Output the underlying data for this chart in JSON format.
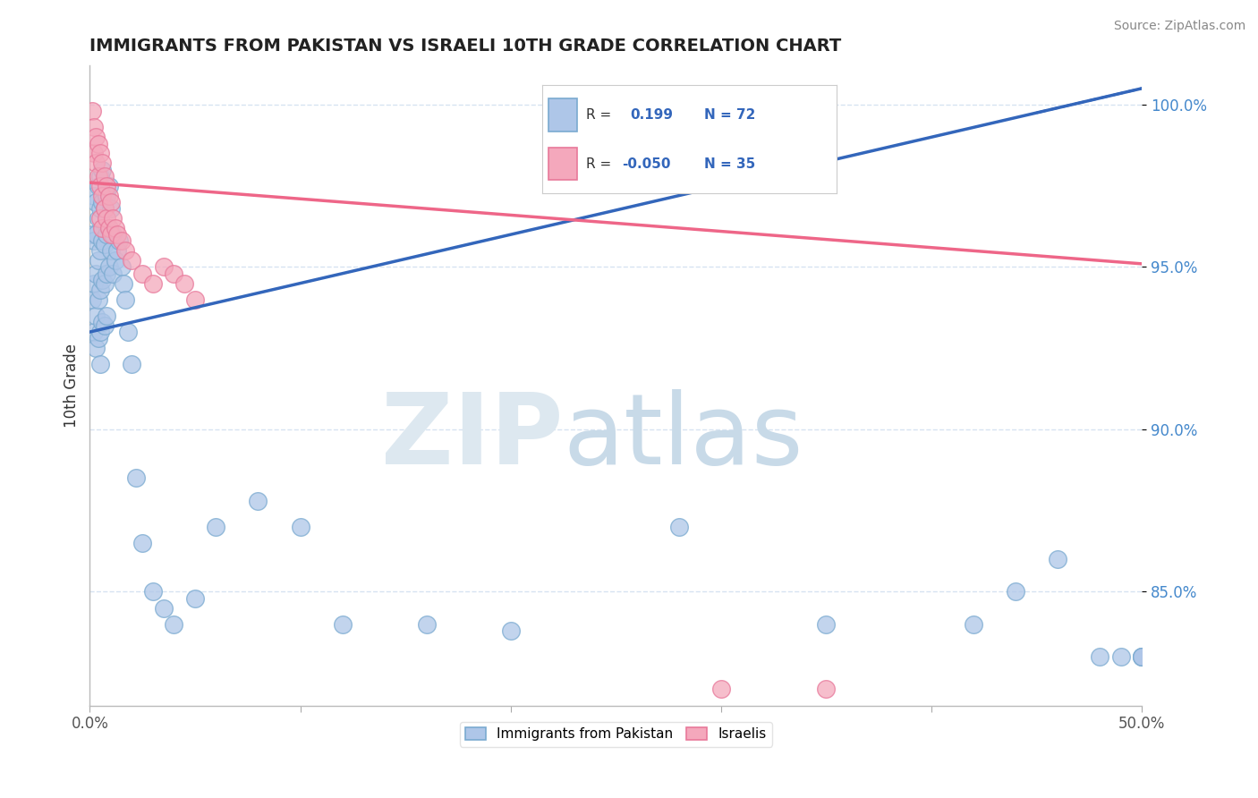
{
  "title": "IMMIGRANTS FROM PAKISTAN VS ISRAELI 10TH GRADE CORRELATION CHART",
  "source": "Source: ZipAtlas.com",
  "ylabel": "10th Grade",
  "y_tick_labels": [
    "85.0%",
    "90.0%",
    "95.0%",
    "100.0%"
  ],
  "y_tick_values": [
    0.85,
    0.9,
    0.95,
    1.0
  ],
  "legend_label1": "Immigrants from Pakistan",
  "legend_label2": "Israelis",
  "watermark_zip": "ZIP",
  "watermark_atlas": "atlas",
  "background_color": "#ffffff",
  "blue_line_color": "#3366bb",
  "pink_line_color": "#ee6688",
  "blue_fill_color": "#aec6e8",
  "blue_edge_color": "#7aaad0",
  "pink_fill_color": "#f4a8bc",
  "pink_edge_color": "#e8789a",
  "R_blue": 0.199,
  "R_pink": -0.05,
  "N_blue": 72,
  "N_pink": 35,
  "xlim": [
    0.0,
    0.5
  ],
  "ylim": [
    0.815,
    1.012
  ],
  "blue_trend_x0": 0.0,
  "blue_trend_y0": 0.93,
  "blue_trend_x1": 0.5,
  "blue_trend_y1": 1.005,
  "pink_trend_x0": 0.0,
  "pink_trend_y0": 0.976,
  "pink_trend_x1": 0.5,
  "pink_trend_y1": 0.951,
  "blue_scatter_x": [
    0.001,
    0.001,
    0.002,
    0.002,
    0.002,
    0.002,
    0.003,
    0.003,
    0.003,
    0.003,
    0.003,
    0.004,
    0.004,
    0.004,
    0.004,
    0.004,
    0.005,
    0.005,
    0.005,
    0.005,
    0.005,
    0.005,
    0.006,
    0.006,
    0.006,
    0.006,
    0.006,
    0.007,
    0.007,
    0.007,
    0.007,
    0.008,
    0.008,
    0.008,
    0.008,
    0.009,
    0.009,
    0.009,
    0.01,
    0.01,
    0.011,
    0.011,
    0.012,
    0.013,
    0.014,
    0.015,
    0.016,
    0.017,
    0.018,
    0.02,
    0.022,
    0.025,
    0.03,
    0.035,
    0.04,
    0.05,
    0.06,
    0.08,
    0.1,
    0.12,
    0.16,
    0.2,
    0.28,
    0.35,
    0.42,
    0.44,
    0.46,
    0.48,
    0.49,
    0.5,
    0.5,
    0.5
  ],
  "blue_scatter_y": [
    0.96,
    0.94,
    0.972,
    0.958,
    0.945,
    0.93,
    0.97,
    0.96,
    0.948,
    0.935,
    0.925,
    0.975,
    0.965,
    0.952,
    0.94,
    0.928,
    0.978,
    0.968,
    0.955,
    0.943,
    0.93,
    0.92,
    0.98,
    0.97,
    0.958,
    0.946,
    0.933,
    0.968,
    0.957,
    0.945,
    0.932,
    0.972,
    0.96,
    0.948,
    0.935,
    0.975,
    0.962,
    0.95,
    0.968,
    0.955,
    0.96,
    0.948,
    0.952,
    0.955,
    0.958,
    0.95,
    0.945,
    0.94,
    0.93,
    0.92,
    0.885,
    0.865,
    0.85,
    0.845,
    0.84,
    0.848,
    0.87,
    0.878,
    0.87,
    0.84,
    0.84,
    0.838,
    0.87,
    0.84,
    0.84,
    0.85,
    0.86,
    0.83,
    0.83,
    0.83,
    0.83,
    0.83
  ],
  "pink_scatter_x": [
    0.001,
    0.002,
    0.002,
    0.003,
    0.003,
    0.004,
    0.004,
    0.005,
    0.005,
    0.005,
    0.006,
    0.006,
    0.006,
    0.007,
    0.007,
    0.008,
    0.008,
    0.009,
    0.009,
    0.01,
    0.01,
    0.011,
    0.012,
    0.013,
    0.015,
    0.017,
    0.02,
    0.025,
    0.03,
    0.035,
    0.04,
    0.045,
    0.05,
    0.3,
    0.35
  ],
  "pink_scatter_y": [
    0.998,
    0.993,
    0.985,
    0.99,
    0.982,
    0.988,
    0.978,
    0.985,
    0.975,
    0.965,
    0.982,
    0.972,
    0.962,
    0.978,
    0.968,
    0.975,
    0.965,
    0.972,
    0.962,
    0.97,
    0.96,
    0.965,
    0.962,
    0.96,
    0.958,
    0.955,
    0.952,
    0.948,
    0.945,
    0.95,
    0.948,
    0.945,
    0.94,
    0.82,
    0.82
  ]
}
